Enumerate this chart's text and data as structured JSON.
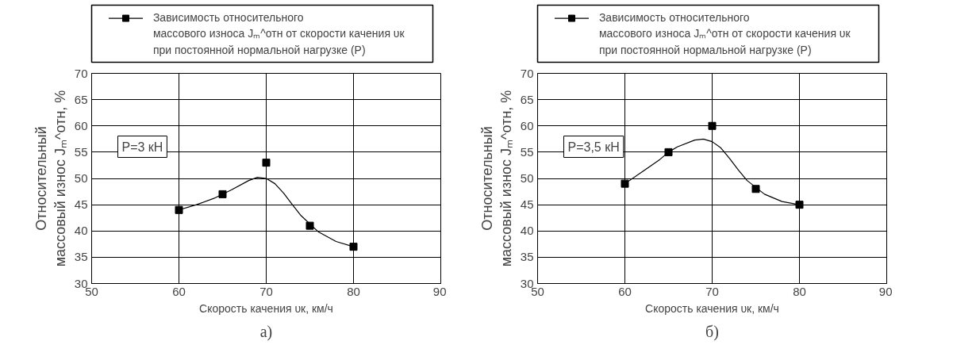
{
  "chart_data": [
    {
      "type": "scatter",
      "xlabel": "Скорость качения υк, км/ч",
      "ylabel": "Относительный\nмассовый износ Jₘ^отн, %",
      "xlim": [
        50,
        90
      ],
      "ylim": [
        30,
        70
      ],
      "xticks": [
        50,
        60,
        70,
        80,
        90
      ],
      "yticks": [
        30,
        35,
        40,
        45,
        50,
        55,
        60,
        65,
        70
      ],
      "grid": true,
      "legend": "top",
      "marker": "square",
      "annotations": [
        {
          "text": "P=3 кН"
        },
        {
          "text": "а)"
        }
      ],
      "series": [
        {
          "name": "Зависимость относительного\nмассового износа Jₘ^отн от скорости качения υк\nпри постоянной нормальной нагрузке (P)",
          "color": "#000000",
          "x": [
            60,
            65,
            70,
            75,
            80
          ],
          "values": [
            44,
            47,
            53,
            41,
            37
          ]
        },
        {
          "type": "line",
          "color": "#000000",
          "marker": "none",
          "x": [
            60,
            62,
            64,
            66,
            68,
            69,
            70,
            71,
            72,
            73,
            74,
            76,
            78,
            80
          ],
          "values": [
            44,
            45,
            46.2,
            47.8,
            49.6,
            50.2,
            50,
            49,
            47.2,
            45,
            42.9,
            39.8,
            38,
            37
          ]
        }
      ]
    },
    {
      "type": "scatter",
      "xlabel": "Скорость качения υк, км/ч",
      "ylabel": "Относительный\nмассовый износ Jₘ^отн, %",
      "xlim": [
        50,
        90
      ],
      "ylim": [
        30,
        70
      ],
      "xticks": [
        50,
        60,
        70,
        80,
        90
      ],
      "yticks": [
        30,
        35,
        40,
        45,
        50,
        55,
        60,
        65,
        70
      ],
      "grid": true,
      "legend": "top",
      "marker": "square",
      "annotations": [
        {
          "text": "P=3,5 кН"
        },
        {
          "text": "б)"
        }
      ],
      "series": [
        {
          "name": "Зависимость относительного\nмассового износа Jₘ^отн от скорости качения υк\nпри постоянной нормальной нагрузке (P)",
          "color": "#000000",
          "x": [
            60,
            65,
            70,
            75,
            80
          ],
          "values": [
            49,
            55,
            60,
            48,
            45
          ]
        },
        {
          "type": "line",
          "color": "#000000",
          "marker": "none",
          "x": [
            60,
            62,
            64,
            65,
            66,
            68,
            69,
            70,
            71,
            72,
            73,
            74,
            76,
            78,
            80
          ],
          "values": [
            49,
            51.3,
            53.6,
            55,
            56,
            57.3,
            57.5,
            57,
            55.8,
            53.8,
            51.6,
            49.6,
            47,
            45.6,
            45
          ]
        }
      ]
    }
  ]
}
